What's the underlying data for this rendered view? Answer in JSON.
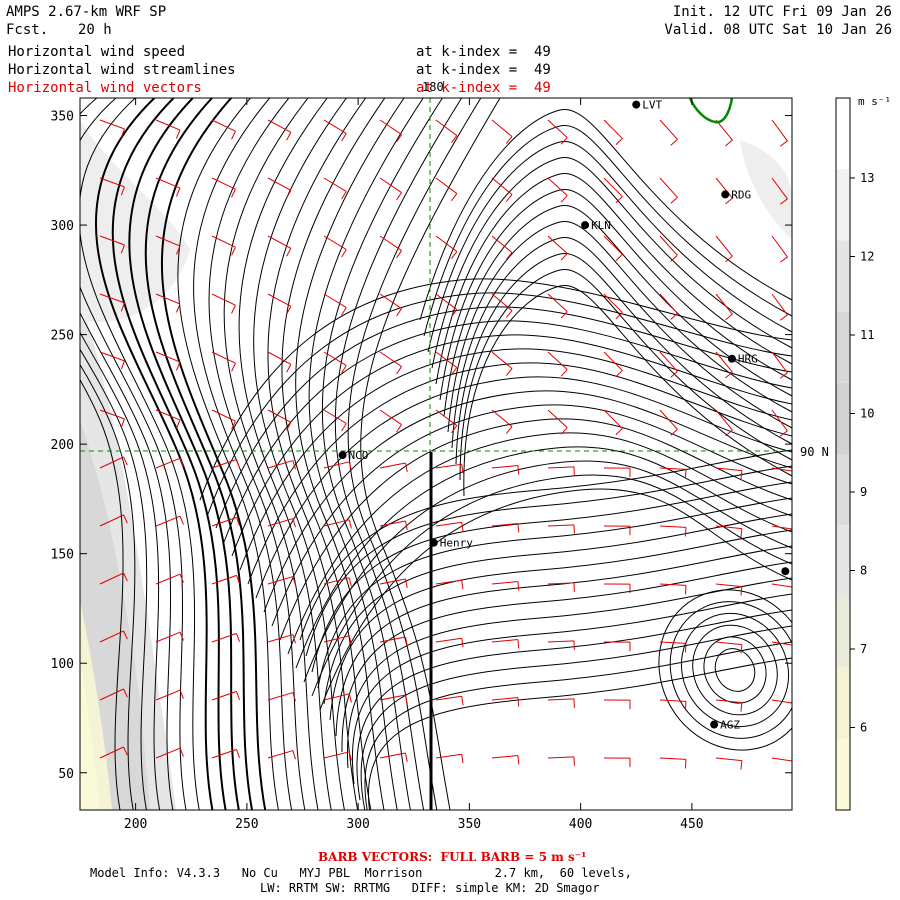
{
  "header": {
    "title": "AMPS 2.67-km WRF SP",
    "fcst_label": "Fcst.",
    "fcst_value": "20 h",
    "init": "Init. 12 UTC Fri 09 Jan 26",
    "valid": "Valid. 08 UTC Sat 10 Jan 26",
    "fields": [
      {
        "name": "Horizontal wind speed",
        "level": "at k-index =  49"
      },
      {
        "name": "Horizontal wind streamlines",
        "level": "at k-index =  49"
      },
      {
        "name": "Horizontal wind vectors",
        "level": "at k-index =  49"
      }
    ]
  },
  "map": {
    "x_ticks": [
      "200",
      "250",
      "300",
      "350",
      "400",
      "450"
    ],
    "y_ticks": [
      "350",
      "300",
      "250",
      "200",
      "150",
      "100",
      "50"
    ],
    "x_tick_values": [
      200,
      250,
      300,
      350,
      400,
      450
    ],
    "y_tick_values": [
      350,
      300,
      250,
      200,
      150,
      100,
      50
    ],
    "xlim": [
      175,
      495
    ],
    "ylim": [
      33,
      358
    ],
    "meridian_label": "180",
    "parallel_label": "90 N",
    "stations": [
      {
        "name": "LVT",
        "x": 425,
        "y": 355
      },
      {
        "name": "RDG",
        "x": 465,
        "y": 314
      },
      {
        "name": "KLN",
        "x": 402,
        "y": 300
      },
      {
        "name": "HRG",
        "x": 468,
        "y": 239
      },
      {
        "name": "NCO",
        "x": 293,
        "y": 195
      },
      {
        "name": "Henry",
        "x": 334,
        "y": 155
      },
      {
        "name": "AGZ",
        "x": 460,
        "y": 72
      },
      {
        "name": "",
        "x": 492,
        "y": 142
      }
    ]
  },
  "colorbar": {
    "unit": "m s⁻¹",
    "labels": [
      "13",
      "12",
      "11",
      "10",
      "9",
      "8",
      "7",
      "6"
    ],
    "colors": [
      "#ffffff",
      "#f2f2f2",
      "#e4e4e4",
      "#d8d8d8",
      "#d2d2d2",
      "#dcdcdc",
      "#e6e6e6",
      "#ebebdc",
      "#f4f4d4",
      "#fafad6"
    ]
  },
  "footer": {
    "barb_note": "BARB VECTORS:  FULL BARB = 5 m s⁻¹",
    "model_info": "Model Info: V4.3.3   No Cu   MYJ PBL  Morrison          2.7 km,  60 levels,",
    "model_info2": "LW: RRTM SW: RRTMG   DIFF: simple KM: 2D Smagor"
  }
}
